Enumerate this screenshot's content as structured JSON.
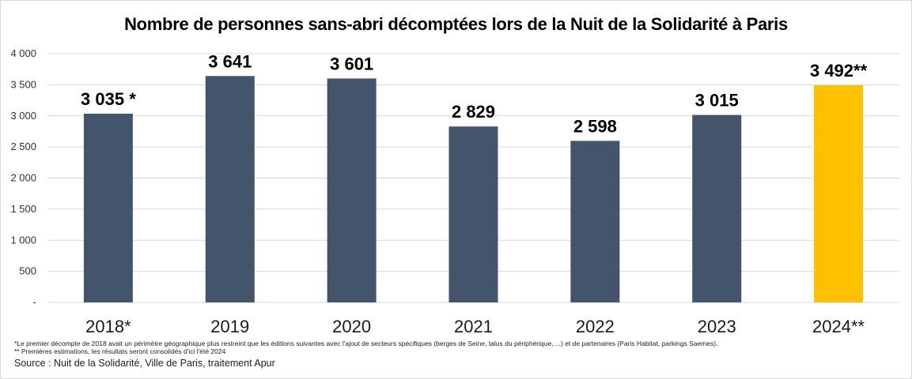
{
  "chart_data": {
    "type": "bar",
    "title": "Nombre de personnes sans-abri décomptées lors de la Nuit de la Solidarité à Paris",
    "categories": [
      "2018*",
      "2019",
      "2020",
      "2021",
      "2022",
      "2023",
      "2024**"
    ],
    "values": [
      3035,
      3641,
      3601,
      2829,
      2598,
      3015,
      3492
    ],
    "data_labels": [
      "3 035 *",
      "3 641",
      "3 601",
      "2 829",
      "2 598",
      "3 015",
      "3 492**"
    ],
    "ylim": [
      0,
      4000
    ],
    "yticks": [
      0,
      500,
      1000,
      1500,
      2000,
      2500,
      3000,
      3500,
      4000
    ],
    "ytick_labels": [
      "-",
      "500",
      "1 000",
      "1 500",
      "2 000",
      "2 500",
      "3 000",
      "3 500",
      "4 000"
    ],
    "xlabel": "",
    "ylabel": "",
    "grid": true,
    "colors": {
      "bar": "#44546a",
      "highlight": "#ffc000",
      "grid": "#d9d9d9"
    },
    "highlight_index": 6
  },
  "notes": {
    "note1": "*Le premier décompte de 2018 avait un périmètre géographique plus restreint que les éditions suivantes  avec l'ajout de secteurs spécifiques (berges de Seine, talus du périphérique, ...) et de partenaires (Paris Habitat, parkings Saemes).",
    "note2": "** Premières estimations, les résultats seront consolidés d'ici l'été 2024",
    "source": "Source : Nuit de la Solidarité, Ville de Paris, traitement Apur"
  }
}
